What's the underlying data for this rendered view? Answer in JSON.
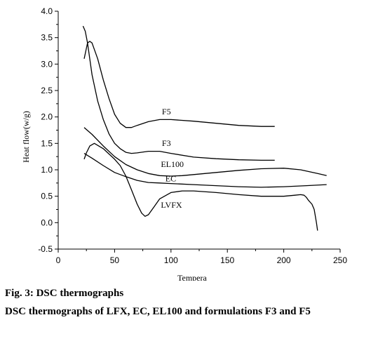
{
  "chart_data": {
    "type": "line",
    "xlabel": "Tempera",
    "ylabel": "Heat flow(w/g)",
    "xlim": [
      0,
      250
    ],
    "ylim": [
      -0.5,
      4.0
    ],
    "x_ticks": [
      "0",
      "50",
      "100",
      "150",
      "200",
      "250"
    ],
    "y_ticks": [
      "-0.5",
      "0.0",
      "0.5",
      "1.0",
      "1.5",
      "2.0",
      "2.5",
      "3.0",
      "3.5",
      "4.0"
    ],
    "grid": false,
    "series": [
      {
        "name": "F5",
        "x": [
          23,
          26,
          28,
          30,
          35,
          40,
          45,
          50,
          55,
          60,
          65,
          70,
          80,
          90,
          100,
          120,
          140,
          160,
          180,
          192
        ],
        "y": [
          3.1,
          3.4,
          3.43,
          3.4,
          3.1,
          2.7,
          2.35,
          2.05,
          1.88,
          1.8,
          1.8,
          1.84,
          1.91,
          1.95,
          1.95,
          1.92,
          1.88,
          1.84,
          1.82,
          1.82
        ]
      },
      {
        "name": "F3",
        "x": [
          22,
          24,
          26,
          28,
          30,
          35,
          40,
          45,
          50,
          55,
          60,
          65,
          70,
          80,
          90,
          100,
          120,
          140,
          160,
          180,
          192
        ],
        "y": [
          3.72,
          3.62,
          3.4,
          3.1,
          2.8,
          2.3,
          1.95,
          1.68,
          1.5,
          1.4,
          1.33,
          1.31,
          1.32,
          1.35,
          1.35,
          1.31,
          1.24,
          1.21,
          1.19,
          1.18,
          1.18
        ]
      },
      {
        "name": "EL100",
        "x": [
          23,
          30,
          40,
          50,
          60,
          70,
          80,
          90,
          100,
          110,
          120,
          140,
          160,
          180,
          200,
          215,
          230,
          238
        ],
        "y": [
          1.8,
          1.67,
          1.45,
          1.25,
          1.1,
          1.0,
          0.93,
          0.89,
          0.88,
          0.89,
          0.91,
          0.95,
          0.99,
          1.02,
          1.03,
          1.0,
          0.93,
          0.89
        ]
      },
      {
        "name": "EC",
        "x": [
          23,
          30,
          40,
          50,
          60,
          70,
          80,
          90,
          100,
          120,
          140,
          160,
          180,
          200,
          220,
          238
        ],
        "y": [
          1.31,
          1.22,
          1.08,
          0.95,
          0.87,
          0.8,
          0.76,
          0.75,
          0.74,
          0.72,
          0.7,
          0.68,
          0.67,
          0.68,
          0.7,
          0.72
        ]
      },
      {
        "name": "LVFX",
        "x": [
          23,
          25,
          28,
          32,
          40,
          50,
          55,
          60,
          65,
          70,
          74,
          77,
          80,
          85,
          90,
          100,
          110,
          120,
          140,
          160,
          180,
          200,
          210,
          215,
          218,
          220,
          222,
          225,
          227,
          229,
          230
        ],
        "y": [
          1.2,
          1.32,
          1.45,
          1.5,
          1.4,
          1.2,
          1.08,
          0.88,
          0.62,
          0.35,
          0.18,
          0.12,
          0.15,
          0.3,
          0.45,
          0.57,
          0.6,
          0.6,
          0.57,
          0.53,
          0.5,
          0.5,
          0.52,
          0.53,
          0.52,
          0.48,
          0.42,
          0.35,
          0.25,
          0.0,
          -0.15
        ]
      }
    ]
  },
  "caption": {
    "figure_label": "Fig. 3: DSC thermographs",
    "description": "DSC thermographs of LFX, EC, EL100 and formulations F3 and F5"
  }
}
